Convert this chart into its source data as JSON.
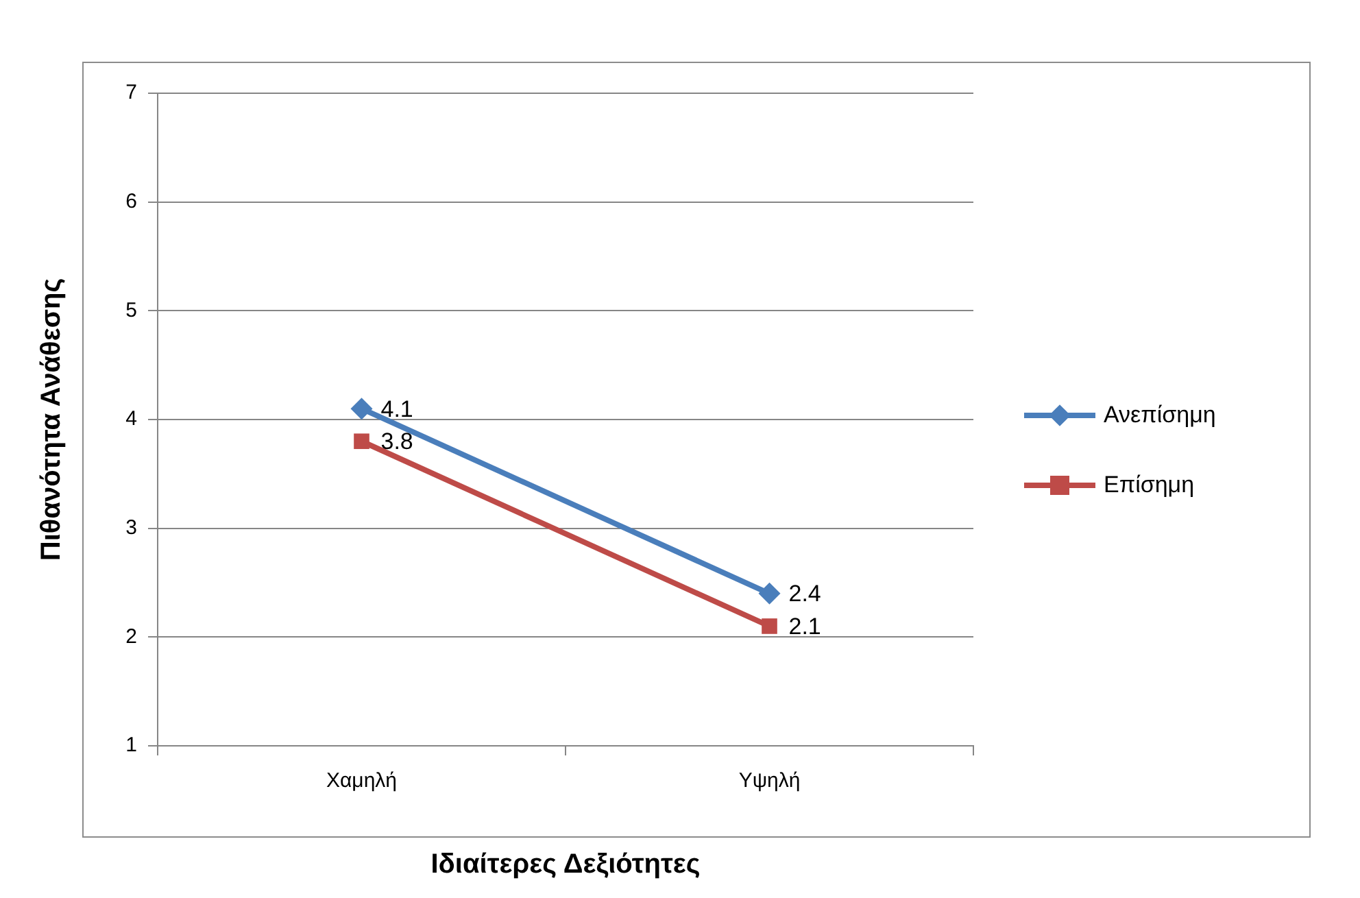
{
  "chart_data": {
    "type": "line",
    "xlabel": "Ιδιαίτερες Δεξιότητες",
    "ylabel": "Πιθανότητα Ανάθεσης",
    "categories": [
      "Χαμηλή",
      "Υψηλή"
    ],
    "series": [
      {
        "name": "Ανεπίσημη",
        "color": "#4a7ebb",
        "values": [
          4.1,
          2.4
        ]
      },
      {
        "name": "Επίσημη",
        "color": "#be4b48",
        "values": [
          3.8,
          2.1
        ],
        "marker": "square"
      }
    ],
    "ylim": [
      1,
      7
    ],
    "yticks": [
      1,
      2,
      3,
      4,
      5,
      6,
      7
    ],
    "grid": "y",
    "legend": "right",
    "data_labels": true,
    "marker": "diamond",
    "line_style": "solid"
  }
}
